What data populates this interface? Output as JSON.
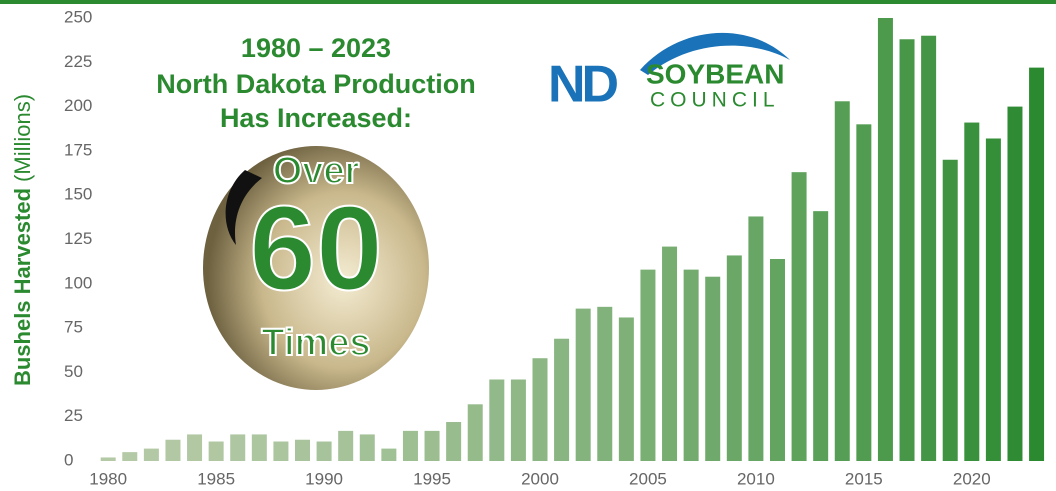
{
  "chart_data": {
    "type": "bar",
    "y_label": "Bushels Harvested",
    "y_label_unit": "(Millions)",
    "annotation": {
      "lines": [
        "1980 – 2023",
        "North Dakota Production",
        "Has Increased:"
      ],
      "over": "Over",
      "number": "60",
      "times": "Times"
    },
    "x": [
      1980,
      1981,
      1982,
      1983,
      1984,
      1985,
      1986,
      1987,
      1988,
      1989,
      1990,
      1991,
      1992,
      1993,
      1994,
      1995,
      1996,
      1997,
      1998,
      1999,
      2000,
      2001,
      2002,
      2003,
      2004,
      2005,
      2006,
      2007,
      2008,
      2009,
      2010,
      2011,
      2012,
      2013,
      2014,
      2015,
      2016,
      2017,
      2018,
      2019,
      2020,
      2021,
      2022,
      2023
    ],
    "values": [
      2,
      5,
      7,
      12,
      15,
      11,
      15,
      15,
      11,
      12,
      11,
      17,
      15,
      7,
      17,
      17,
      22,
      32,
      46,
      46,
      58,
      69,
      86,
      87,
      81,
      108,
      121,
      108,
      104,
      116,
      138,
      114,
      163,
      141,
      203,
      190,
      250,
      238,
      240,
      170,
      191,
      182,
      200,
      222
    ],
    "color_range": [
      "#b4c9a6",
      "#2b8a30"
    ],
    "xlim": [
      1979.25,
      2023.9
    ],
    "xticks": [
      1980,
      1985,
      1990,
      1995,
      2000,
      2005,
      2010,
      2015,
      2020
    ],
    "ylim": [
      0,
      250
    ],
    "yticks": [
      0,
      25,
      50,
      75,
      100,
      125,
      150,
      175,
      200,
      225,
      250
    ],
    "grid": false
  },
  "logo": {
    "mark": "ND",
    "name": "SOYBEAN",
    "sub": "COUNCIL"
  }
}
